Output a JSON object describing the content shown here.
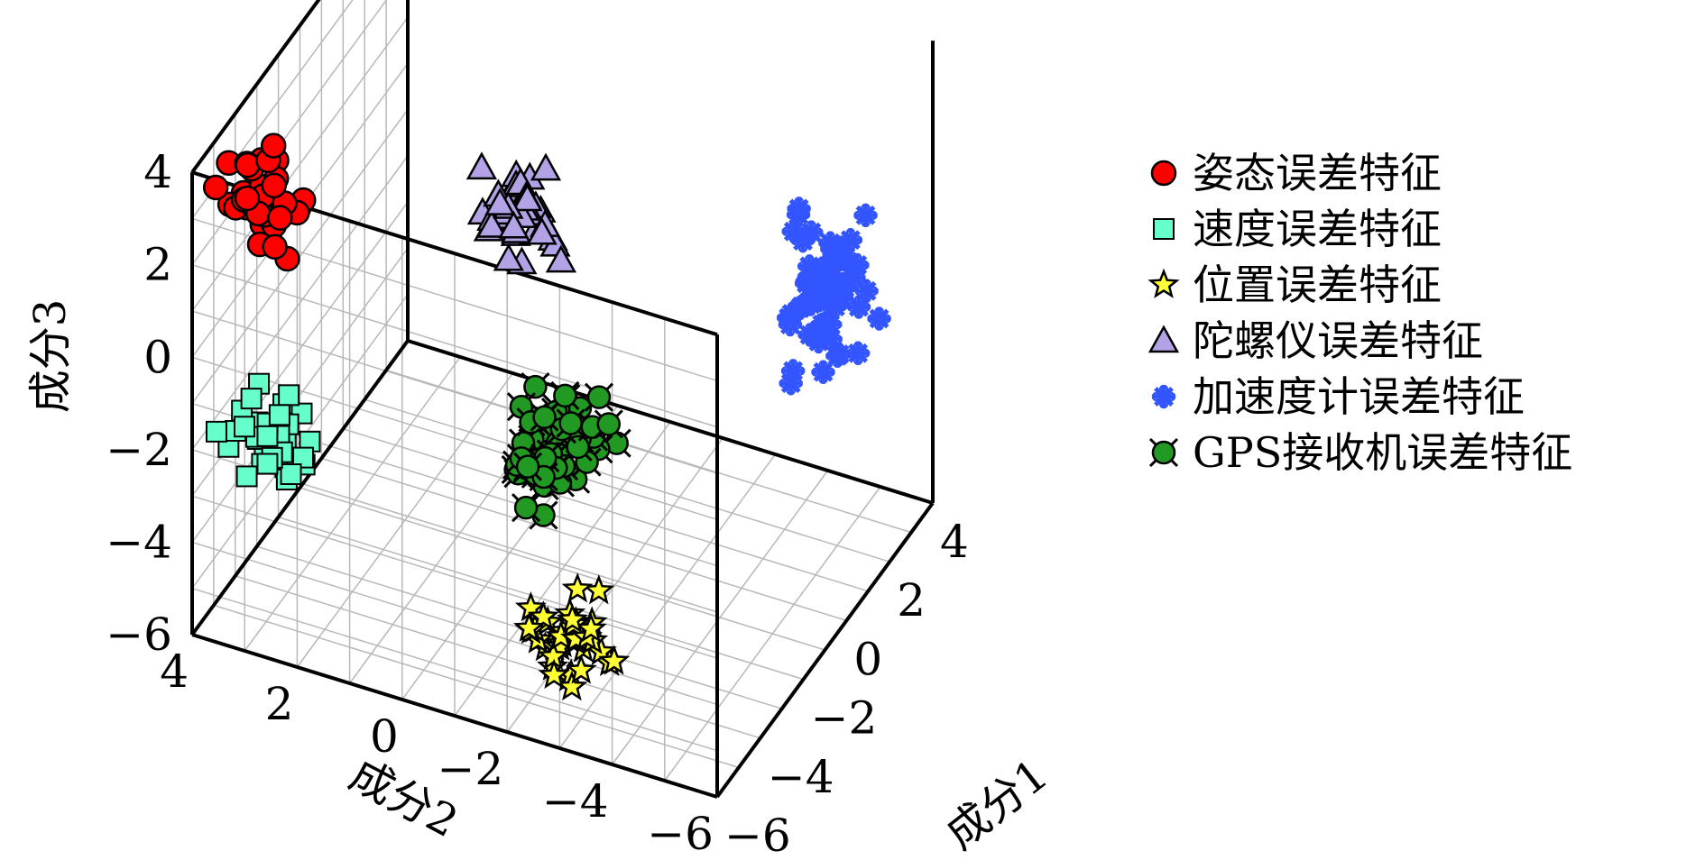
{
  "chart_data": {
    "type": "scatter",
    "xlabel": "成分1",
    "ylabel": "成分2",
    "zlabel": "成分3",
    "xlim": [
      -6,
      4
    ],
    "ylim": [
      -6,
      4
    ],
    "zlim": [
      -6,
      4
    ],
    "x_ticks": [
      "−6",
      "−4",
      "−2",
      "0",
      "2",
      "4"
    ],
    "y_ticks": [
      "−6",
      "−4",
      "−2",
      "0",
      "2",
      "4"
    ],
    "z_ticks": [
      "−6",
      "−4",
      "−2",
      "0",
      "2",
      "4"
    ],
    "grid": true,
    "legend_position": "right",
    "series": [
      {
        "name": "姿态误差特征",
        "marker": "circle",
        "color": "#ff0000",
        "center": [
          -4.6,
          3.2,
          2.8
        ],
        "spread": [
          0.7,
          0.7,
          0.9
        ],
        "count": 42
      },
      {
        "name": "速度误差特征",
        "marker": "square",
        "color": "#66ffcc",
        "center": [
          -4.3,
          3.3,
          -2.6
        ],
        "spread": [
          0.6,
          0.6,
          0.9
        ],
        "count": 40
      },
      {
        "name": "位置误差特征",
        "marker": "star",
        "color": "#ffff33",
        "center": [
          -4.8,
          -2.5,
          -4.6
        ],
        "spread": [
          0.9,
          0.9,
          0.5
        ],
        "count": 40
      },
      {
        "name": "陀螺仪误差特征",
        "marker": "triangle",
        "color": "#b3a3e6",
        "center": [
          -3.4,
          -1.2,
          3.1
        ],
        "spread": [
          0.6,
          0.7,
          0.9
        ],
        "count": 38
      },
      {
        "name": "加速度计误差特征",
        "marker": "snowflake",
        "color": "#3355ff",
        "center": [
          0.5,
          -5.3,
          0.5
        ],
        "spread": [
          0.8,
          0.6,
          1.7
        ],
        "count": 60
      },
      {
        "name": "GPS接收机误差特征",
        "marker": "circle-x",
        "color": "#229922",
        "center": [
          -2.6,
          -1.5,
          -2.0
        ],
        "spread": [
          0.8,
          0.7,
          1.1
        ],
        "count": 48
      }
    ]
  }
}
